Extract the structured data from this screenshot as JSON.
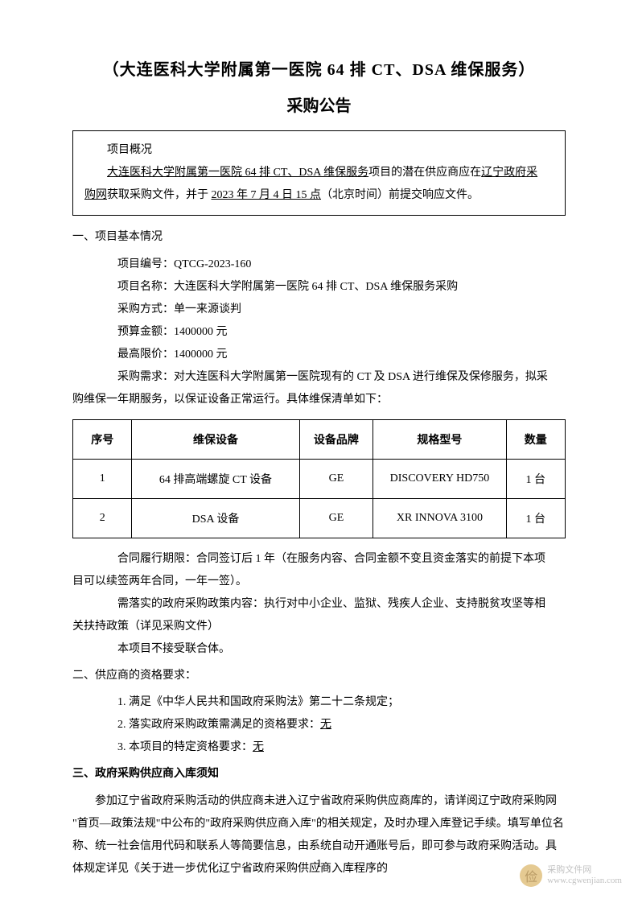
{
  "title": {
    "main": "（大连医科大学附属第一医院 64 排 CT、DSA 维保服务）",
    "sub": "采购公告"
  },
  "overview": {
    "label": "项目概况",
    "line1_a": "大连医科大学附属第一医院 64 排 CT、DSA 维保服务",
    "line1_b": "项目的潜在供应商应在",
    "line1_c": "辽宁政府采",
    "line2_a": "购网",
    "line2_b": "获取采购文件，并于 ",
    "line2_c": "2023 年 7 月 4 日 15 点",
    "line2_d": "（北京时间）前提交响应文件。"
  },
  "section1": {
    "heading": "一、项目基本情况",
    "project_no_label": "项目编号：",
    "project_no": "QTCG-2023-160",
    "project_name_label": "项目名称：",
    "project_name": "大连医科大学附属第一医院 64 排 CT、DSA 维保服务采购",
    "method_label": "采购方式：",
    "method": "单一来源谈判",
    "budget_label": "预算金额：",
    "budget": "1400000 元",
    "maxprice_label": "最高限价：",
    "maxprice": "1400000 元",
    "requirement_label": "采购需求：",
    "requirement_text": "对大连医科大学附属第一医院现有的 CT 及 DSA 进行维保及保修服务，拟采",
    "requirement_text2": "购维保一年期服务，以保证设备正常运行。具体维保清单如下：",
    "contract_period": "合同履行期限：合同签订后 1 年（在服务内容、合同金额不变且资金落实的前提下本项",
    "contract_period2": "目可以续签两年合同，一年一签）。",
    "policy_text": "需落实的政府采购政策内容：执行对中小企业、监狱、残疾人企业、支持脱贫攻坚等相",
    "policy_text2": "关扶持政策（详见采购文件）",
    "consortium": "本项目不接受联合体。"
  },
  "table": {
    "headers": {
      "seq": "序号",
      "equipment": "维保设备",
      "brand": "设备品牌",
      "model": "规格型号",
      "quantity": "数量"
    },
    "rows": [
      {
        "seq": "1",
        "equipment": "64 排高端螺旋 CT 设备",
        "brand": "GE",
        "model": "DISCOVERY HD750",
        "quantity": "1 台"
      },
      {
        "seq": "2",
        "equipment": "DSA 设备",
        "brand": "GE",
        "model": "XR INNOVA 3100",
        "quantity": "1 台"
      }
    ]
  },
  "section2": {
    "heading": "二、供应商的资格要求：",
    "item1": "1. 满足《中华人民共和国政府采购法》第二十二条规定；",
    "item2a": "2. 落实政府采购政策需满足的资格要求：",
    "item2b": "无",
    "item3a": "3. 本项目的特定资格要求：",
    "item3b": "无"
  },
  "section3": {
    "heading": "三、政府采购供应商入库须知",
    "para": "参加辽宁省政府采购活动的供应商未进入辽宁省政府采购供应商库的，请详阅辽宁政府采购网 \"首页—政策法规\"中公布的\"政府采购供应商入库\"的相关规定，及时办理入库登记手续。填写单位名称、统一社会信用代码和联系人等简要信息，由系统自动开通账号后，即可参与政府采购活动。具体规定详见《关于进一步优化辽宁省政府采购供应商入库程序的"
  },
  "page_number": "1",
  "watermark": {
    "name": "采购文件网",
    "url": "www.cgwenjian.com"
  }
}
